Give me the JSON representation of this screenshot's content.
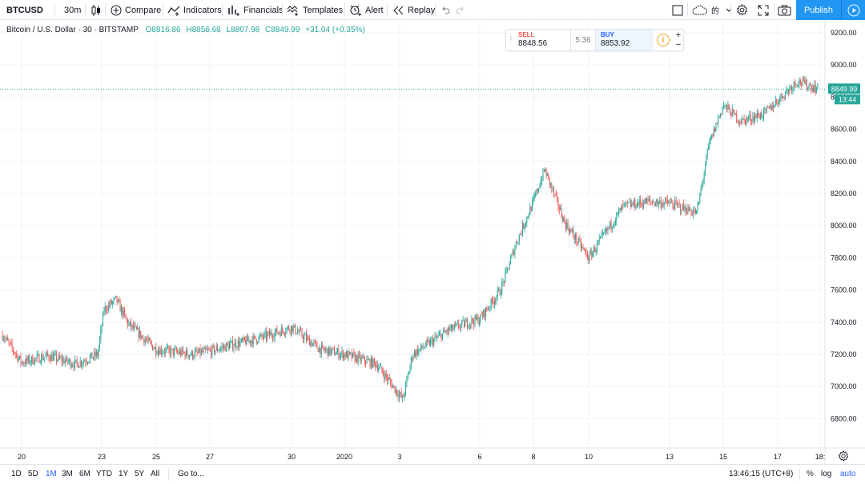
{
  "toolbar": {
    "symbol": "BTCUSD",
    "interval": "30m",
    "compare": "Compare",
    "indicators": "Indicators",
    "financials": "Financials",
    "templates": "Templates",
    "alert": "Alert",
    "replay": "Replay",
    "publish": "Publish"
  },
  "legend": {
    "title": "Bitcoin / U.S. Dollar · 30 · BITSTAMP",
    "open": "O8816.86",
    "high": "H8856.68",
    "low": "L8807.98",
    "close": "C8849.99",
    "change": "+31.04 (+0.35%)"
  },
  "trade_panel": {
    "sell_label": "SELL",
    "sell_price": "8848.56",
    "spread": "5.36",
    "buy_label": "BUY",
    "buy_price": "8853.92"
  },
  "price_axis": {
    "ticks": [
      "9200.00",
      "9000.00",
      "8800.00",
      "8600.00",
      "8400.00",
      "8200.00",
      "8000.00",
      "7800.00",
      "7600.00",
      "7400.00",
      "7200.00",
      "7000.00",
      "6800.00"
    ],
    "last_price": "8849.99",
    "countdown": "13:44"
  },
  "time_axis": {
    "labels": [
      "20",
      "23",
      "25",
      "27",
      "30",
      "2020",
      "3",
      "6",
      "8",
      "10",
      "13",
      "15",
      "17",
      "18:"
    ]
  },
  "bottombar": {
    "ranges": [
      "1D",
      "5D",
      "1M",
      "3M",
      "6M",
      "YTD",
      "1Y",
      "5Y",
      "All"
    ],
    "active_range": "1M",
    "goto": "Go to...",
    "clock": "13:46:15 (UTC+8)",
    "percent": "%",
    "log": "log",
    "auto": "auto"
  },
  "colors": {
    "up": "#26a69a",
    "down": "#ef5350",
    "accent": "#2196f3",
    "grid": "#f0f3fa"
  },
  "chart_data": {
    "type": "candlestick",
    "symbol": "BTCUSD",
    "exchange": "BITSTAMP",
    "interval": "30",
    "ylim": [
      6700,
      9300
    ],
    "x_ticks": [
      "20",
      "23",
      "25",
      "27",
      "30",
      "2020",
      "3",
      "6",
      "8",
      "10",
      "13",
      "15",
      "17",
      "18:"
    ],
    "close_path": [
      {
        "x": "19",
        "y": 7330
      },
      {
        "x": "20",
        "y": 7150
      },
      {
        "x": "21",
        "y": 7190
      },
      {
        "x": "22",
        "y": 7140
      },
      {
        "x": "23",
        "y": 7200
      },
      {
        "x": "23",
        "y": 7480
      },
      {
        "x": "24",
        "y": 7540
      },
      {
        "x": "24",
        "y": 7390
      },
      {
        "x": "25",
        "y": 7230
      },
      {
        "x": "26",
        "y": 7200
      },
      {
        "x": "27",
        "y": 7220
      },
      {
        "x": "28",
        "y": 7260
      },
      {
        "x": "29",
        "y": 7310
      },
      {
        "x": "30",
        "y": 7370
      },
      {
        "x": "31",
        "y": 7230
      },
      {
        "x": "2020",
        "y": 7200
      },
      {
        "x": "2",
        "y": 7140
      },
      {
        "x": "3",
        "y": 6920
      },
      {
        "x": "3",
        "y": 7200
      },
      {
        "x": "4",
        "y": 7350
      },
      {
        "x": "5",
        "y": 7400
      },
      {
        "x": "6",
        "y": 7420
      },
      {
        "x": "7",
        "y": 7600
      },
      {
        "x": "7",
        "y": 7900
      },
      {
        "x": "8",
        "y": 8150
      },
      {
        "x": "8",
        "y": 8350
      },
      {
        "x": "9",
        "y": 8020
      },
      {
        "x": "10",
        "y": 7800
      },
      {
        "x": "11",
        "y": 8120
      },
      {
        "x": "12",
        "y": 8150
      },
      {
        "x": "13",
        "y": 8140
      },
      {
        "x": "14",
        "y": 8080
      },
      {
        "x": "14",
        "y": 8500
      },
      {
        "x": "15",
        "y": 8750
      },
      {
        "x": "16",
        "y": 8650
      },
      {
        "x": "17",
        "y": 8700
      },
      {
        "x": "18",
        "y": 8900
      },
      {
        "x": "18",
        "y": 8849.99
      }
    ],
    "last": {
      "open": 8816.86,
      "high": 8856.68,
      "low": 8807.98,
      "close": 8849.99
    }
  }
}
